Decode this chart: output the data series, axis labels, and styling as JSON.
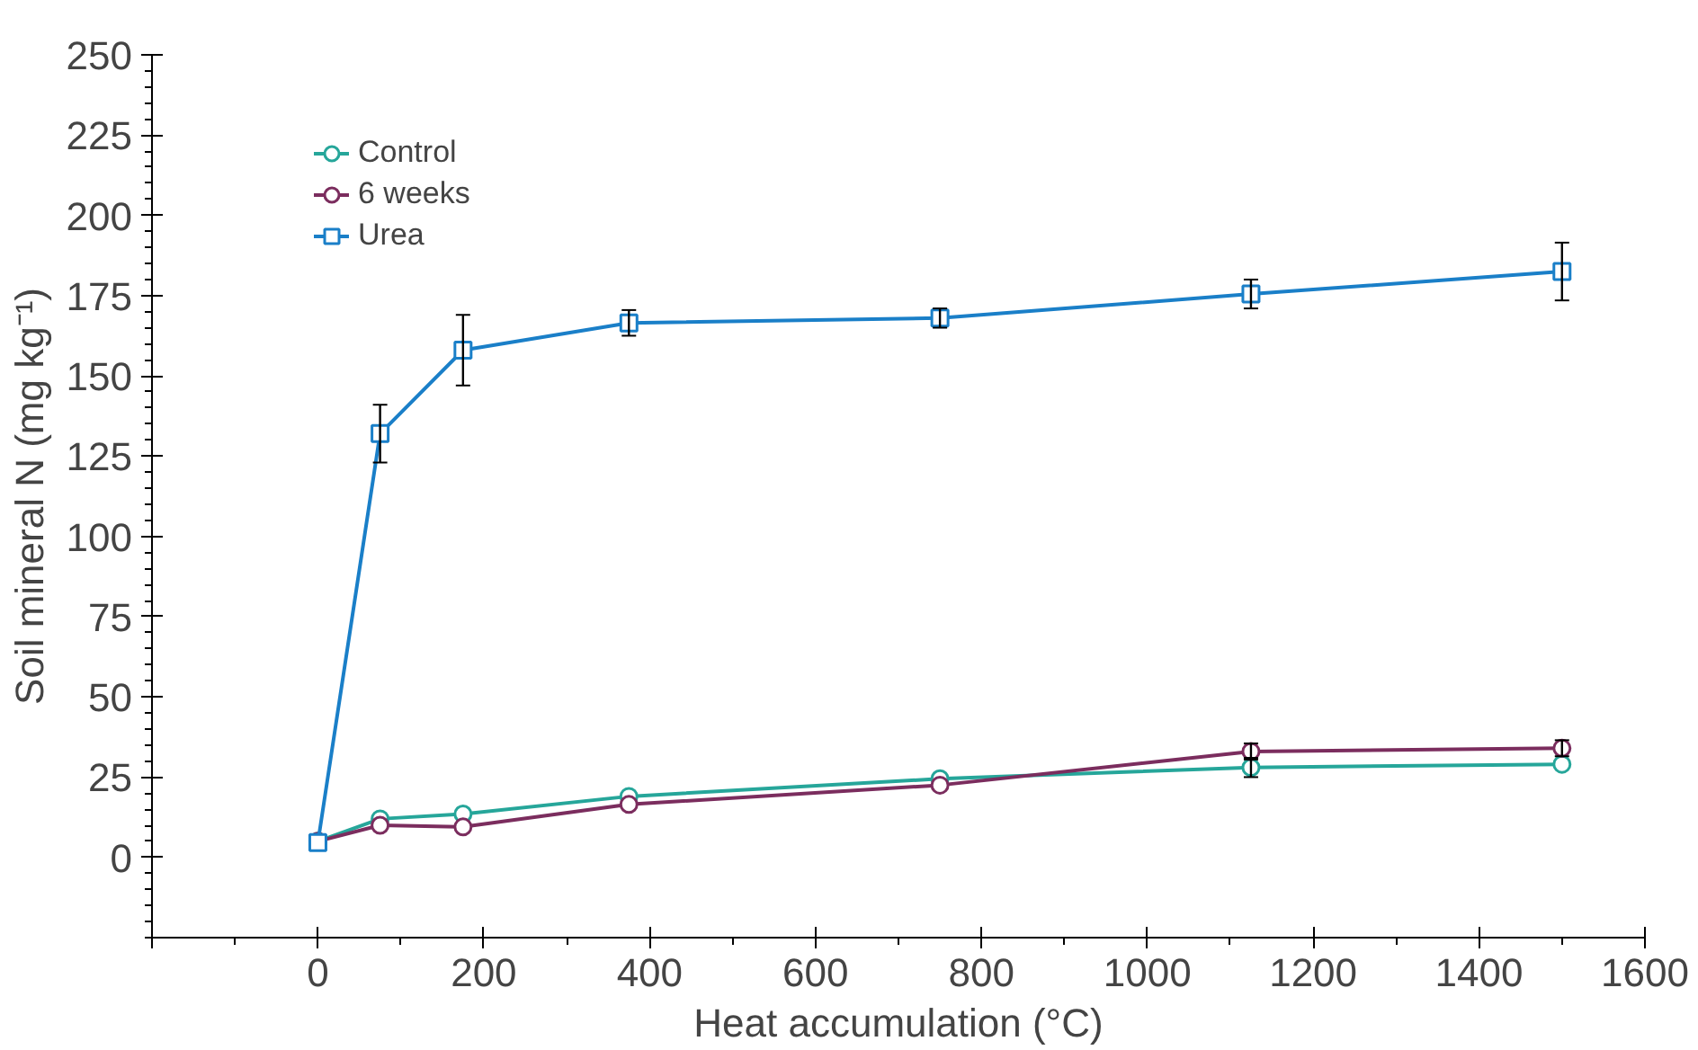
{
  "chart_data": {
    "type": "line",
    "xlabel": "Heat accumulation (°C)",
    "ylabel": "Soil mineral N (mg kg⁻¹)",
    "x": [
      0,
      75,
      175,
      375,
      750,
      1125,
      1500
    ],
    "xlim": [
      -200,
      1600
    ],
    "xticks": [
      {
        "value": -200,
        "label": null
      },
      0,
      200,
      400,
      600,
      800,
      1000,
      1200,
      1400,
      1600
    ],
    "ylim": [
      -25,
      250
    ],
    "yticks": [
      0,
      25,
      50,
      75,
      100,
      125,
      150,
      175,
      200,
      225,
      250
    ],
    "grid": false,
    "legend": "top left",
    "line_style": "solid",
    "series": [
      {
        "name": "Control",
        "color": "#26a69a",
        "marker": "circle",
        "values": [
          5,
          12,
          13.5,
          19,
          24.5,
          28,
          29
        ],
        "errors": [
          null,
          null,
          null,
          null,
          null,
          3,
          null
        ]
      },
      {
        "name": "6 weeks",
        "color": "#7b2d5e",
        "marker": "circle",
        "values": [
          5,
          10,
          9.5,
          16.5,
          22.5,
          33,
          34
        ],
        "errors": [
          null,
          null,
          null,
          null,
          null,
          2.5,
          2.5
        ]
      },
      {
        "name": "Urea",
        "color": "#1a7fc8",
        "marker": "square",
        "values": [
          4.6,
          132,
          158,
          166.5,
          168,
          175.5,
          182.5
        ],
        "errors": [
          null,
          9,
          11,
          4,
          3,
          4.5,
          9
        ]
      }
    ]
  }
}
